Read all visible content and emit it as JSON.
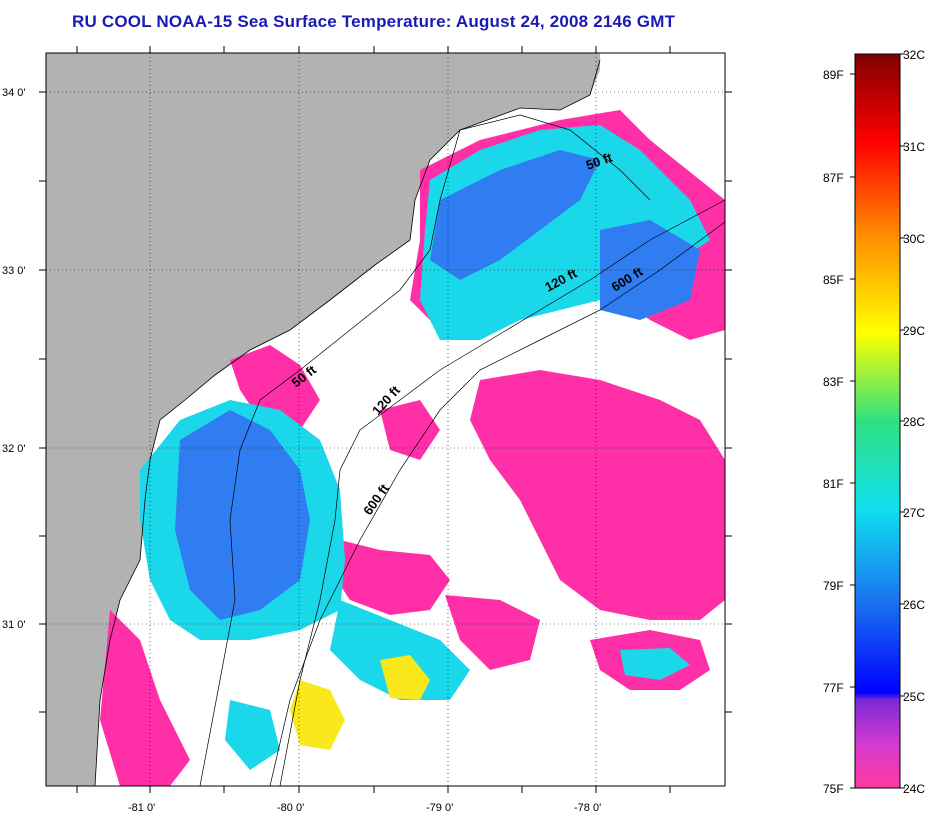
{
  "title": "RU COOL  NOAA-15  Sea Surface Temperature:  August 24, 2008 2146 GMT",
  "axes": {
    "longitude_ticks": [
      "-81 0'",
      "-80 0'",
      "-79 0'",
      "-78 0'"
    ],
    "latitude_ticks": [
      "34 0'",
      "33 0'",
      "32 0'",
      "31 0'"
    ]
  },
  "contours": {
    "labels_north": [
      "50 ft",
      "120 ft",
      "600 ft"
    ],
    "labels_south": [
      "50 ft",
      "120 ft",
      "600 ft"
    ]
  },
  "colorbar": {
    "celsius_labels": [
      "32C",
      "31C",
      "30C",
      "29C",
      "28C",
      "27C",
      "26C",
      "25C",
      "24C"
    ],
    "fahrenheit_labels": [
      "89F",
      "87F",
      "85F",
      "83F",
      "81F",
      "79F",
      "77F",
      "75F"
    ]
  },
  "colors": {
    "title": "#1a1ab4",
    "land": "#b2b2b2",
    "no_data": "#ffffff",
    "cold": "#ff2fa8",
    "cool": "#2f7df0",
    "mid": "#1ad8ea",
    "warm": "#f8e81c"
  }
}
